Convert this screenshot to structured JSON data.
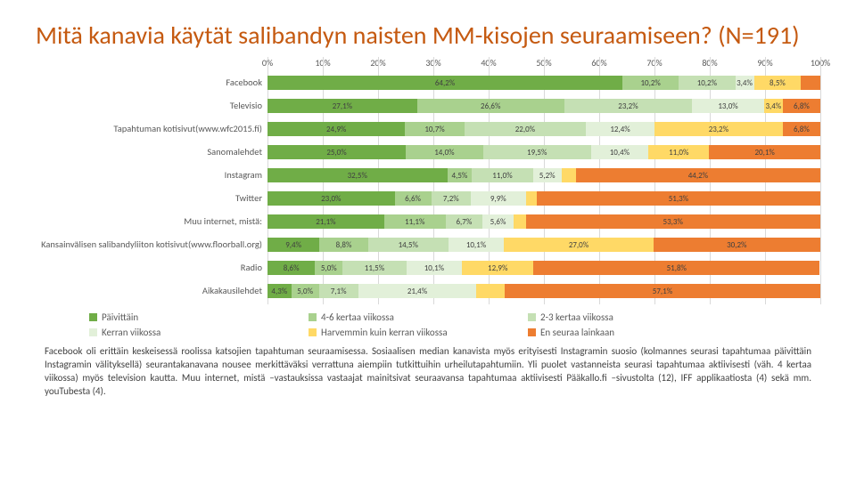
{
  "title": "Mitä kanavia käytät salibandyn naisten MM-kisojen seuraamiseen? (N=191)",
  "chart": {
    "type": "stacked-bar-horizontal",
    "xlim": [
      0,
      100
    ],
    "xtick_step": 10,
    "xtick_labels": [
      "0%",
      "10%",
      "20%",
      "30%",
      "40%",
      "50%",
      "60%",
      "70%",
      "80%",
      "90%",
      "100%"
    ],
    "grid_color": "#d9d9d9",
    "background_color": "#ffffff",
    "label_fontsize": 10.5,
    "value_fontsize": 9,
    "series_colors": [
      "#70ad47",
      "#a9d18e",
      "#c5e0b4",
      "#e2f0d9",
      "#ffd966",
      "#ed7d31"
    ],
    "series_labels": [
      "Päivittäin",
      "4-6 kertaa viikossa",
      "2-3 kertaa viikossa",
      "Kerran viikossa",
      "Harvemmin kuin kerran viikossa",
      "En seuraa lainkaan"
    ],
    "rows": [
      {
        "label": "Facebook",
        "segs": [
          64.2,
          10.2,
          10.2,
          3.4,
          8.5,
          3.5
        ],
        "seg_labels": [
          "64,2%",
          "10,2%",
          "10,2%",
          "3,4%",
          "8,5%",
          ""
        ]
      },
      {
        "label": "Televisio",
        "segs": [
          27.1,
          26.6,
          23.2,
          13.0,
          3.4,
          6.8
        ],
        "seg_labels": [
          "27,1%",
          "26,6%",
          "23,2%",
          "13,0%",
          "3,4%",
          "6,8%"
        ]
      },
      {
        "label": "Tapahtuman kotisivut(www.wfc2015.fi)",
        "segs": [
          24.9,
          10.7,
          22.0,
          12.4,
          23.2,
          6.8
        ],
        "seg_labels": [
          "24,9%",
          "10,7%",
          "22,0%",
          "12,4%",
          "23,2%",
          "6,8%"
        ]
      },
      {
        "label": "Sanomalehdet",
        "segs": [
          25.0,
          14.0,
          19.5,
          10.4,
          11.0,
          20.1
        ],
        "seg_labels": [
          "25,0%",
          "14,0%",
          "19,5%",
          "10,4%",
          "11,0%",
          "20,1%"
        ]
      },
      {
        "label": "Instagram",
        "segs": [
          32.5,
          4.5,
          11.0,
          5.2,
          2.6,
          44.2
        ],
        "seg_labels": [
          "32,5%",
          "4,5%",
          "11,0%",
          "5,2%",
          "",
          "44,2%"
        ]
      },
      {
        "label": "Twitter",
        "segs": [
          23.0,
          6.6,
          7.2,
          9.9,
          2.0,
          51.3
        ],
        "seg_labels": [
          "23,0%",
          "6,6%",
          "7,2%",
          "9,9%",
          "",
          "51,3%"
        ]
      },
      {
        "label": "Muu internet, mistä:",
        "segs": [
          21.1,
          11.1,
          6.7,
          5.6,
          2.2,
          53.3
        ],
        "seg_labels": [
          "21,1%",
          "11,1%",
          "6,7%",
          "5,6%",
          "",
          "53,3%"
        ]
      },
      {
        "label": "Kansainvälisen salibandyliiton kotisivut(www.floorball.org)",
        "segs": [
          9.4,
          8.8,
          14.5,
          10.1,
          27.0,
          30.2
        ],
        "seg_labels": [
          "9,4%",
          "8,8%",
          "14,5%",
          "10,1%",
          "27,0%",
          "30,2%"
        ]
      },
      {
        "label": "Radio",
        "segs": [
          8.6,
          5.0,
          11.5,
          10.1,
          12.9,
          51.8
        ],
        "seg_labels": [
          "8,6%",
          "5,0%",
          "11,5%",
          "10,1%",
          "12,9%",
          "51,8%"
        ]
      },
      {
        "label": "Aikakausilehdet",
        "segs": [
          4.3,
          5.0,
          7.1,
          21.4,
          5.1,
          57.1
        ],
        "seg_labels": [
          "4,3%",
          "5,0%",
          "7,1%",
          "21,4%",
          "",
          "57,1%"
        ]
      }
    ]
  },
  "footnote": "Facebook oli erittäin keskeisessä roolissa katsojien tapahtuman seuraamisessa. Sosiaalisen median kanavista myös erityisesti Instagramin suosio (kolmannes seurasi tapahtumaa päivittäin Instagramin välityksellä) seurantakanavana nousee merkittäväksi verrattuna aiempiin tutkittuihin urheilutapahtumiin. Yli puolet vastanneista seurasi tapahtumaa aktiivisesti (väh. 4 kertaa viikossa) myös television kautta. Muu internet, mistä –vastauksissa vastaajat mainitsivat seuraavansa tapahtumaa aktiivisesti Pääkallo.fi –sivustolta (12), IFF applikaatiosta (4) sekä mm. youTubesta (4)."
}
